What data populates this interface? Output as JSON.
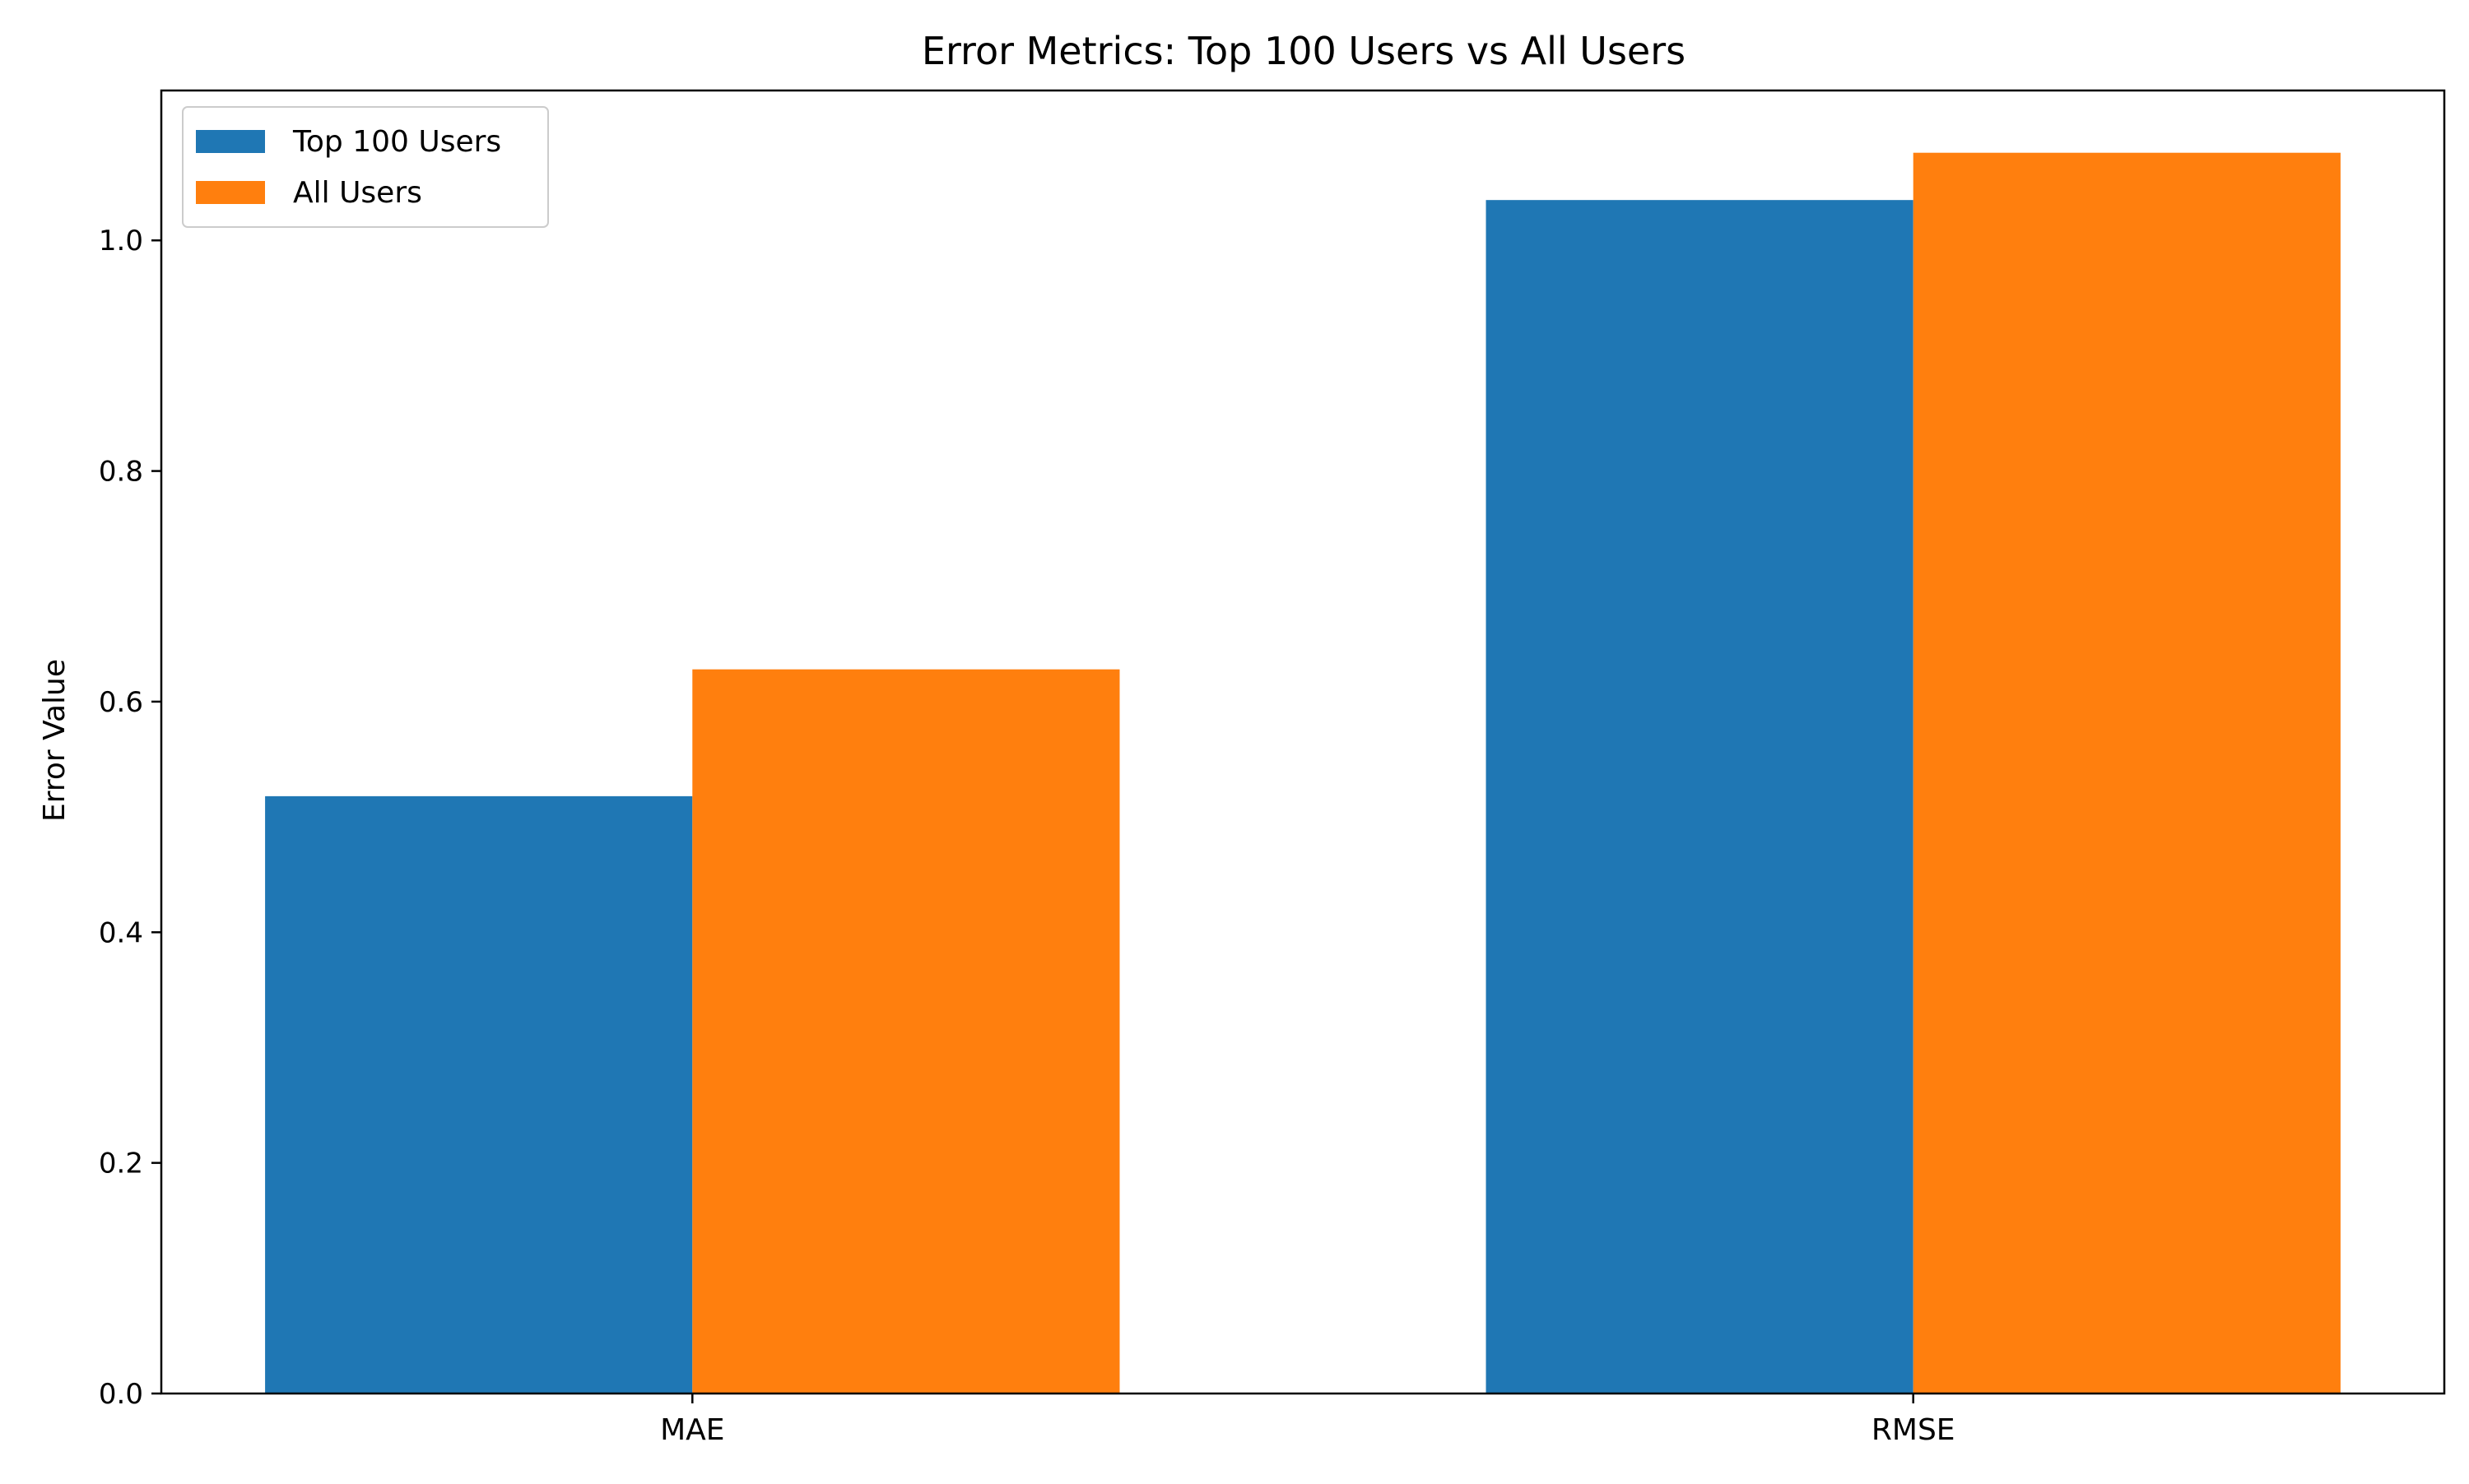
{
  "chart_data": {
    "type": "bar",
    "title": "Error Metrics: Top 100 Users vs All Users",
    "xlabel": "",
    "ylabel": "Error Value",
    "categories": [
      "MAE",
      "RMSE"
    ],
    "series": [
      {
        "name": "Top 100 Users",
        "color": "#1f77b4",
        "values": [
          0.518,
          1.035
        ]
      },
      {
        "name": "All Users",
        "color": "#ff7f0e",
        "values": [
          0.628,
          1.076
        ]
      }
    ],
    "ylim": [
      0,
      1.13
    ],
    "yticks": [
      0.0,
      0.2,
      0.4,
      0.6,
      0.8,
      1.0
    ],
    "ytick_labels": [
      "0.0",
      "0.2",
      "0.4",
      "0.6",
      "0.8",
      "1.0"
    ],
    "grid": false,
    "legend_position": "top-left"
  }
}
